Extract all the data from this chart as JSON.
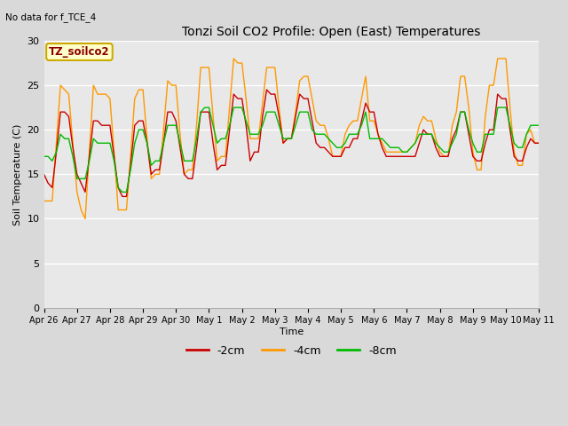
{
  "title": "Tonzi Soil CO2 Profile: Open (East) Temperatures",
  "subtitle": "No data for f_TCE_4",
  "ylabel": "Soil Temperature (C)",
  "xlabel": "Time",
  "legend_label": "TZ_soilco2",
  "ylim": [
    0,
    30
  ],
  "yticks": [
    0,
    5,
    10,
    15,
    20,
    25,
    30
  ],
  "xtick_labels": [
    "Apr 26",
    "Apr 27",
    "Apr 28",
    "Apr 29",
    "Apr 30",
    "May 1",
    "May 2",
    "May 3",
    "May 4",
    "May 5",
    "May 6",
    "May 7",
    "May 8",
    "May 9",
    "May 10",
    "May 11"
  ],
  "fig_bg_color": "#d9d9d9",
  "plot_bg_color": "#e8e8e8",
  "series_neg2cm_color": "#cc0000",
  "series_neg4cm_color": "#ff9900",
  "series_neg8cm_color": "#00bb00",
  "series_labels": [
    "-2cm",
    "-4cm",
    "-8cm"
  ],
  "t": [
    0,
    0.125,
    0.25,
    0.375,
    0.5,
    0.625,
    0.75,
    0.875,
    1.0,
    1.125,
    1.25,
    1.375,
    1.5,
    1.625,
    1.75,
    1.875,
    2.0,
    2.125,
    2.25,
    2.375,
    2.5,
    2.625,
    2.75,
    2.875,
    3.0,
    3.125,
    3.25,
    3.375,
    3.5,
    3.625,
    3.75,
    3.875,
    4.0,
    4.125,
    4.25,
    4.375,
    4.5,
    4.625,
    4.75,
    4.875,
    5.0,
    5.125,
    5.25,
    5.375,
    5.5,
    5.625,
    5.75,
    5.875,
    6.0,
    6.125,
    6.25,
    6.375,
    6.5,
    6.625,
    6.75,
    6.875,
    7.0,
    7.125,
    7.25,
    7.375,
    7.5,
    7.625,
    7.75,
    7.875,
    8.0,
    8.125,
    8.25,
    8.375,
    8.5,
    8.625,
    8.75,
    8.875,
    9.0,
    9.125,
    9.25,
    9.375,
    9.5,
    9.625,
    9.75,
    9.875,
    10.0,
    10.125,
    10.25,
    10.375,
    10.5,
    10.625,
    10.75,
    10.875,
    11.0,
    11.125,
    11.25,
    11.375,
    11.5,
    11.625,
    11.75,
    11.875,
    12.0,
    12.125,
    12.25,
    12.375,
    12.5,
    12.625,
    12.75,
    12.875,
    13.0,
    13.125,
    13.25,
    13.375,
    13.5,
    13.625,
    13.75,
    13.875,
    14.0,
    14.125,
    14.25,
    14.375,
    14.5,
    14.625,
    14.75,
    14.875,
    15.0
  ],
  "neg2cm": [
    15.0,
    14.0,
    13.5,
    17.5,
    22.0,
    22.0,
    21.5,
    18.0,
    15.0,
    14.0,
    13.0,
    17.0,
    21.0,
    21.0,
    20.5,
    20.5,
    20.5,
    17.0,
    13.5,
    12.5,
    12.5,
    16.0,
    20.5,
    21.0,
    21.0,
    18.5,
    15.0,
    15.5,
    15.5,
    18.5,
    22.0,
    22.0,
    21.0,
    18.0,
    15.0,
    14.5,
    14.5,
    18.0,
    22.0,
    22.0,
    22.0,
    18.5,
    15.5,
    16.0,
    16.0,
    20.0,
    24.0,
    23.5,
    23.5,
    20.5,
    16.5,
    17.5,
    17.5,
    21.5,
    24.5,
    24.0,
    24.0,
    21.5,
    18.5,
    19.0,
    19.0,
    21.5,
    24.0,
    23.5,
    23.5,
    21.0,
    18.5,
    18.0,
    18.0,
    17.5,
    17.0,
    17.0,
    17.0,
    18.0,
    18.0,
    19.0,
    19.0,
    21.0,
    23.0,
    22.0,
    22.0,
    19.5,
    18.0,
    17.0,
    17.0,
    17.0,
    17.0,
    17.0,
    17.0,
    17.0,
    17.0,
    18.5,
    20.0,
    19.5,
    19.5,
    18.0,
    17.0,
    17.0,
    17.0,
    19.0,
    20.0,
    22.0,
    22.0,
    19.5,
    17.0,
    16.5,
    16.5,
    18.5,
    20.0,
    20.0,
    24.0,
    23.5,
    23.5,
    20.0,
    17.0,
    16.5,
    16.5,
    18.0,
    19.0,
    18.5,
    18.5
  ],
  "neg4cm": [
    12.0,
    12.0,
    12.0,
    18.5,
    25.0,
    24.5,
    24.0,
    18.5,
    13.0,
    11.0,
    10.0,
    17.5,
    25.0,
    24.0,
    24.0,
    24.0,
    23.5,
    17.5,
    11.0,
    11.0,
    11.0,
    17.0,
    23.5,
    24.5,
    24.5,
    19.0,
    14.5,
    15.0,
    15.0,
    20.0,
    25.5,
    25.0,
    25.0,
    19.5,
    15.0,
    15.5,
    15.5,
    20.5,
    27.0,
    27.0,
    27.0,
    21.5,
    16.5,
    17.0,
    17.0,
    22.5,
    28.0,
    27.5,
    27.5,
    23.5,
    19.0,
    19.0,
    19.0,
    23.0,
    27.0,
    27.0,
    27.0,
    22.5,
    18.5,
    19.0,
    19.0,
    22.0,
    25.5,
    26.0,
    26.0,
    23.5,
    21.0,
    20.5,
    20.5,
    19.0,
    17.0,
    17.0,
    17.0,
    19.5,
    20.5,
    21.0,
    21.0,
    23.5,
    26.0,
    21.0,
    21.0,
    19.5,
    18.5,
    17.5,
    17.5,
    17.5,
    17.5,
    17.5,
    17.5,
    18.0,
    18.5,
    20.5,
    21.5,
    21.0,
    21.0,
    19.0,
    17.5,
    17.0,
    17.0,
    20.5,
    22.0,
    26.0,
    26.0,
    22.5,
    17.5,
    15.5,
    15.5,
    21.5,
    25.0,
    25.0,
    28.0,
    28.0,
    28.0,
    22.5,
    17.5,
    16.0,
    16.0,
    19.5,
    20.0,
    18.5,
    18.5
  ],
  "neg8cm": [
    17.0,
    17.0,
    16.5,
    17.5,
    19.5,
    19.0,
    19.0,
    17.0,
    14.5,
    14.5,
    14.5,
    16.5,
    19.0,
    18.5,
    18.5,
    18.5,
    18.5,
    16.5,
    13.5,
    13.0,
    13.0,
    15.5,
    18.5,
    20.0,
    20.0,
    18.5,
    16.0,
    16.5,
    16.5,
    18.5,
    20.5,
    20.5,
    20.5,
    18.5,
    16.5,
    16.5,
    16.5,
    19.0,
    22.0,
    22.5,
    22.5,
    20.5,
    18.5,
    19.0,
    19.0,
    20.5,
    22.5,
    22.5,
    22.5,
    21.0,
    19.5,
    19.5,
    19.5,
    20.5,
    22.0,
    22.0,
    22.0,
    20.5,
    19.0,
    19.0,
    19.0,
    20.5,
    22.0,
    22.0,
    22.0,
    20.0,
    19.5,
    19.5,
    19.5,
    19.0,
    18.5,
    18.0,
    18.0,
    18.5,
    19.5,
    19.5,
    19.5,
    20.5,
    22.0,
    19.0,
    19.0,
    19.0,
    19.0,
    18.5,
    18.0,
    18.0,
    18.0,
    17.5,
    17.5,
    18.0,
    18.5,
    19.5,
    19.5,
    19.5,
    19.5,
    18.5,
    18.0,
    17.5,
    17.5,
    18.5,
    19.5,
    22.0,
    22.0,
    20.0,
    18.5,
    17.5,
    17.5,
    19.5,
    19.5,
    19.5,
    22.5,
    22.5,
    22.5,
    20.5,
    18.5,
    18.0,
    18.0,
    19.5,
    20.5,
    20.5,
    20.5
  ]
}
